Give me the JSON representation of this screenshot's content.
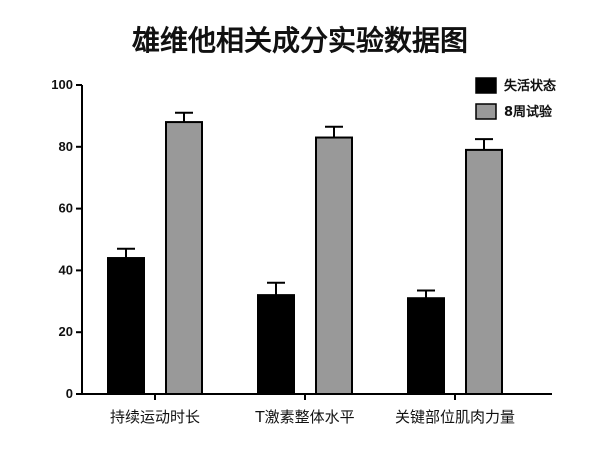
{
  "chart_data": {
    "type": "bar",
    "title": "雄维他相关成分实验数据图",
    "categories": [
      "持续运动时长",
      "T激素整体水平",
      "关键部位肌肉力量"
    ],
    "series": [
      {
        "name": "失活状态",
        "color": "#000000",
        "values": [
          44,
          32,
          31
        ],
        "errors": [
          3,
          4,
          2.5
        ]
      },
      {
        "name": "8周试验",
        "color": "#999999",
        "values": [
          88,
          83,
          79
        ],
        "errors": [
          3,
          3.5,
          3.5
        ]
      }
    ],
    "yticks": [
      0,
      20,
      40,
      60,
      80,
      100
    ],
    "ylim": [
      0,
      100
    ],
    "legend": "top-right",
    "grid": false
  }
}
